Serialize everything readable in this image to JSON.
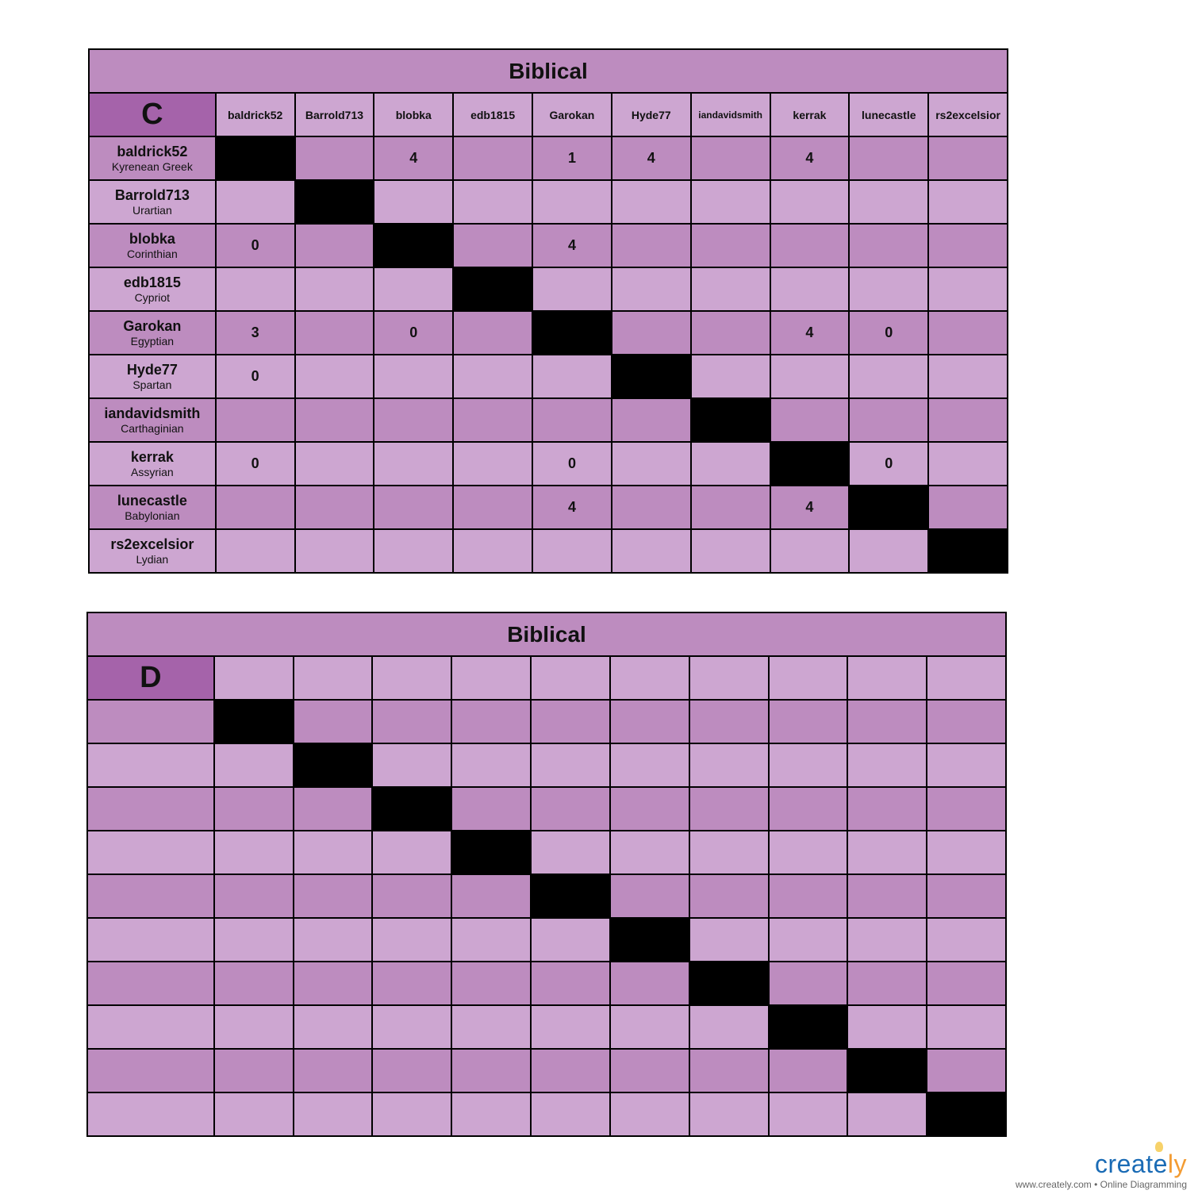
{
  "tables": [
    {
      "title": "Biblical",
      "corner": "C",
      "columns": [
        "baldrick52",
        "Barrold713",
        "blobka",
        "edb1815",
        "Garokan",
        "Hyde77",
        "iandavidsmith",
        "kerrak",
        "lunecastle",
        "rs2excelsior"
      ],
      "rows": [
        {
          "name": "baldrick52",
          "sub": "Kyrenean Greek",
          "cells": [
            "",
            "",
            "4",
            "",
            "1",
            "4",
            "",
            "4",
            "",
            ""
          ]
        },
        {
          "name": "Barrold713",
          "sub": "Urartian",
          "cells": [
            "",
            "",
            "",
            "",
            "",
            "",
            "",
            "",
            "",
            ""
          ]
        },
        {
          "name": "blobka",
          "sub": "Corinthian",
          "cells": [
            "0",
            "",
            "",
            "",
            "4",
            "",
            "",
            "",
            "",
            ""
          ]
        },
        {
          "name": "edb1815",
          "sub": "Cypriot",
          "cells": [
            "",
            "",
            "",
            "",
            "",
            "",
            "",
            "",
            "",
            ""
          ]
        },
        {
          "name": "Garokan",
          "sub": "Egyptian",
          "cells": [
            "3",
            "",
            "0",
            "",
            "",
            "",
            "",
            "4",
            "0",
            ""
          ]
        },
        {
          "name": "Hyde77",
          "sub": "Spartan",
          "cells": [
            "0",
            "",
            "",
            "",
            "",
            "",
            "",
            "",
            "",
            ""
          ]
        },
        {
          "name": "iandavidsmith",
          "sub": "Carthaginian",
          "cells": [
            "",
            "",
            "",
            "",
            "",
            "",
            "",
            "",
            "",
            ""
          ]
        },
        {
          "name": "kerrak",
          "sub": "Assyrian",
          "cells": [
            "0",
            "",
            "",
            "",
            "0",
            "",
            "",
            "",
            "0",
            ""
          ]
        },
        {
          "name": "lunecastle",
          "sub": "Babylonian",
          "cells": [
            "",
            "",
            "",
            "",
            "4",
            "",
            "",
            "4",
            "",
            ""
          ]
        },
        {
          "name": "rs2excelsior",
          "sub": "Lydian",
          "cells": [
            "",
            "",
            "",
            "",
            "",
            "",
            "",
            "",
            "",
            ""
          ]
        }
      ]
    },
    {
      "title": "Biblical",
      "corner": "D",
      "columns": [
        "",
        "",
        "",
        "",
        "",
        "",
        "",
        "",
        "",
        ""
      ],
      "rows": [
        {
          "name": "",
          "sub": "",
          "cells": [
            "",
            "",
            "",
            "",
            "",
            "",
            "",
            "",
            "",
            ""
          ]
        },
        {
          "name": "",
          "sub": "",
          "cells": [
            "",
            "",
            "",
            "",
            "",
            "",
            "",
            "",
            "",
            ""
          ]
        },
        {
          "name": "",
          "sub": "",
          "cells": [
            "",
            "",
            "",
            "",
            "",
            "",
            "",
            "",
            "",
            ""
          ]
        },
        {
          "name": "",
          "sub": "",
          "cells": [
            "",
            "",
            "",
            "",
            "",
            "",
            "",
            "",
            "",
            ""
          ]
        },
        {
          "name": "",
          "sub": "",
          "cells": [
            "",
            "",
            "",
            "",
            "",
            "",
            "",
            "",
            "",
            ""
          ]
        },
        {
          "name": "",
          "sub": "",
          "cells": [
            "",
            "",
            "",
            "",
            "",
            "",
            "",
            "",
            "",
            ""
          ]
        },
        {
          "name": "",
          "sub": "",
          "cells": [
            "",
            "",
            "",
            "",
            "",
            "",
            "",
            "",
            "",
            ""
          ]
        },
        {
          "name": "",
          "sub": "",
          "cells": [
            "",
            "",
            "",
            "",
            "",
            "",
            "",
            "",
            "",
            ""
          ]
        },
        {
          "name": "",
          "sub": "",
          "cells": [
            "",
            "",
            "",
            "",
            "",
            "",
            "",
            "",
            "",
            ""
          ]
        },
        {
          "name": "",
          "sub": "",
          "cells": [
            "",
            "",
            "",
            "",
            "",
            "",
            "",
            "",
            "",
            ""
          ]
        }
      ]
    }
  ],
  "colors": {
    "dark_row": "#BD8CBF",
    "light_row": "#CDA6D1",
    "corner": "#A563AA",
    "diagonal": "#000000"
  },
  "logo": {
    "word": "creately",
    "url_text": "www.creately.com • Online Diagramming"
  }
}
